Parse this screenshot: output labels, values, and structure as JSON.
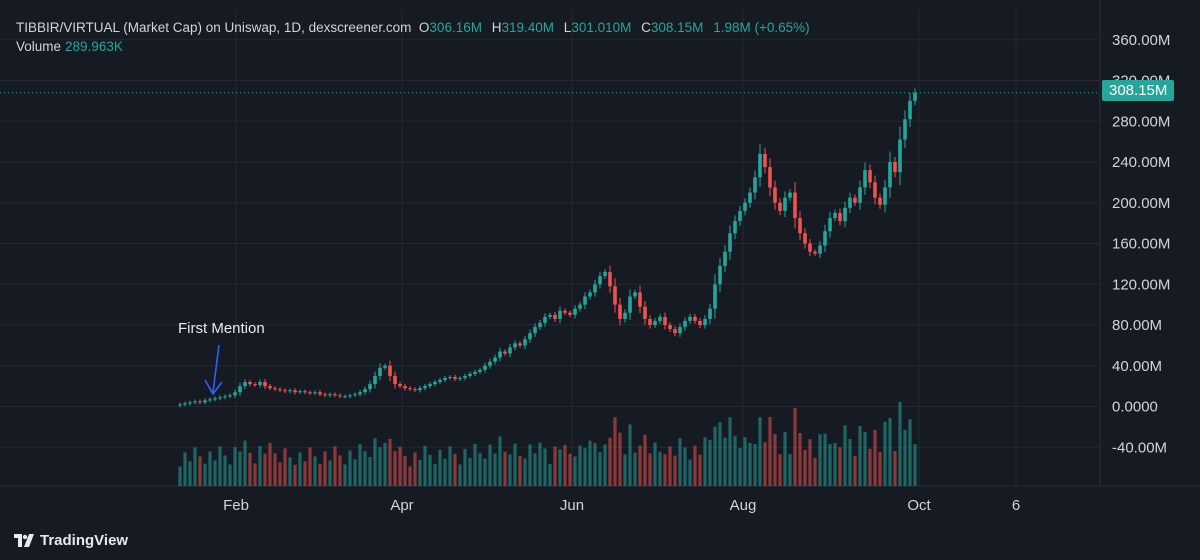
{
  "header": {
    "symbol": "TIBBIR/VIRTUAL (Market Cap) on Uniswap, 1D, dexscreener.com",
    "open_label": "O",
    "open": "306.16M",
    "high_label": "H",
    "high": "319.40M",
    "low_label": "L",
    "low": "301.010M",
    "close_label": "C",
    "close": "308.15M",
    "change": "1.98M (+0.65%)",
    "volume_label": "Volume",
    "volume": "289.963K"
  },
  "price_tag": "308.15M",
  "annotation": "First Mention",
  "footer": {
    "brand": "TradingView",
    "logo_icon": "tradingview-logo-icon"
  },
  "colors": {
    "up": "#26a69a",
    "down": "#ef5350",
    "background": "#151a23",
    "grid": "#232833",
    "annotation_arrow": "#2962ff"
  },
  "chart_data": {
    "type": "candlestick",
    "title": "TIBBIR/VIRTUAL (Market Cap) on Uniswap, 1D, dexscreener.com",
    "y_ticks": [
      "360.00M",
      "320.00M",
      "280.00M",
      "240.00M",
      "200.00M",
      "160.00M",
      "120.00M",
      "80.00M",
      "40.00M",
      "0.0000",
      "-40.00M"
    ],
    "y_tick_values": [
      360,
      320,
      280,
      240,
      200,
      160,
      120,
      80,
      40,
      0,
      -40
    ],
    "x_ticks": [
      "Feb",
      "Apr",
      "Jun",
      "Aug",
      "Oct",
      "6"
    ],
    "y_unit": "M",
    "ylim": [
      -78,
      385
    ],
    "grid": true,
    "series": [
      {
        "name": "Market Cap",
        "points": [
          [
            0,
            2
          ],
          [
            1,
            3
          ],
          [
            2,
            4
          ],
          [
            3,
            5
          ],
          [
            4,
            4
          ],
          [
            5,
            6
          ],
          [
            6,
            7
          ],
          [
            7,
            8
          ],
          [
            8,
            9
          ],
          [
            9,
            10
          ],
          [
            10,
            11
          ],
          [
            11,
            14
          ],
          [
            12,
            20
          ],
          [
            13,
            24
          ],
          [
            14,
            22
          ],
          [
            15,
            21
          ],
          [
            16,
            24
          ],
          [
            17,
            20
          ],
          [
            18,
            18
          ],
          [
            19,
            17
          ],
          [
            20,
            16
          ],
          [
            21,
            15
          ],
          [
            22,
            16
          ],
          [
            23,
            14
          ],
          [
            24,
            15
          ],
          [
            25,
            14
          ],
          [
            26,
            13
          ],
          [
            27,
            14
          ],
          [
            28,
            12
          ],
          [
            29,
            11
          ],
          [
            30,
            12
          ],
          [
            31,
            11
          ],
          [
            32,
            10
          ],
          [
            33,
            10
          ],
          [
            34,
            11
          ],
          [
            35,
            12
          ],
          [
            36,
            14
          ],
          [
            37,
            17
          ],
          [
            38,
            22
          ],
          [
            39,
            30
          ],
          [
            40,
            38
          ],
          [
            41,
            40
          ],
          [
            42,
            30
          ],
          [
            43,
            22
          ],
          [
            44,
            20
          ],
          [
            45,
            18
          ],
          [
            46,
            17
          ],
          [
            47,
            16
          ],
          [
            48,
            18
          ],
          [
            49,
            20
          ],
          [
            50,
            22
          ],
          [
            51,
            24
          ],
          [
            52,
            26
          ],
          [
            53,
            28
          ],
          [
            54,
            29
          ],
          [
            55,
            27
          ],
          [
            56,
            28
          ],
          [
            57,
            30
          ],
          [
            58,
            32
          ],
          [
            59,
            34
          ],
          [
            60,
            36
          ],
          [
            61,
            40
          ],
          [
            62,
            44
          ],
          [
            63,
            48
          ],
          [
            64,
            54
          ],
          [
            65,
            52
          ],
          [
            66,
            58
          ],
          [
            67,
            62
          ],
          [
            68,
            60
          ],
          [
            69,
            66
          ],
          [
            70,
            72
          ],
          [
            71,
            78
          ],
          [
            72,
            82
          ],
          [
            73,
            88
          ],
          [
            74,
            90
          ],
          [
            75,
            86
          ],
          [
            76,
            94
          ],
          [
            77,
            92
          ],
          [
            78,
            90
          ],
          [
            79,
            96
          ],
          [
            80,
            100
          ],
          [
            81,
            108
          ],
          [
            82,
            112
          ],
          [
            83,
            120
          ],
          [
            84,
            128
          ],
          [
            85,
            132
          ],
          [
            86,
            118
          ],
          [
            87,
            100
          ],
          [
            88,
            86
          ],
          [
            89,
            92
          ],
          [
            90,
            108
          ],
          [
            91,
            112
          ],
          [
            92,
            98
          ],
          [
            93,
            86
          ],
          [
            94,
            80
          ],
          [
            95,
            84
          ],
          [
            96,
            88
          ],
          [
            97,
            80
          ],
          [
            98,
            76
          ],
          [
            99,
            72
          ],
          [
            100,
            78
          ],
          [
            101,
            84
          ],
          [
            102,
            88
          ],
          [
            103,
            84
          ],
          [
            104,
            80
          ],
          [
            105,
            86
          ],
          [
            106,
            96
          ],
          [
            107,
            120
          ],
          [
            108,
            138
          ],
          [
            109,
            152
          ],
          [
            110,
            170
          ],
          [
            111,
            182
          ],
          [
            112,
            192
          ],
          [
            113,
            200
          ],
          [
            114,
            210
          ],
          [
            115,
            225
          ],
          [
            116,
            248
          ],
          [
            117,
            235
          ],
          [
            118,
            215
          ],
          [
            119,
            200
          ],
          [
            120,
            192
          ],
          [
            121,
            205
          ],
          [
            122,
            210
          ],
          [
            123,
            185
          ],
          [
            124,
            170
          ],
          [
            125,
            160
          ],
          [
            126,
            152
          ],
          [
            127,
            150
          ],
          [
            128,
            158
          ],
          [
            129,
            172
          ],
          [
            130,
            185
          ],
          [
            131,
            190
          ],
          [
            132,
            182
          ],
          [
            133,
            195
          ],
          [
            134,
            205
          ],
          [
            135,
            200
          ],
          [
            136,
            215
          ],
          [
            137,
            232
          ],
          [
            138,
            220
          ],
          [
            139,
            205
          ],
          [
            140,
            198
          ],
          [
            141,
            215
          ],
          [
            142,
            240
          ],
          [
            143,
            230
          ],
          [
            144,
            262
          ],
          [
            145,
            282
          ],
          [
            146,
            300
          ],
          [
            147,
            308
          ]
        ]
      }
    ],
    "annotations": [
      {
        "label": "First Mention",
        "x_index": 7
      }
    ]
  }
}
